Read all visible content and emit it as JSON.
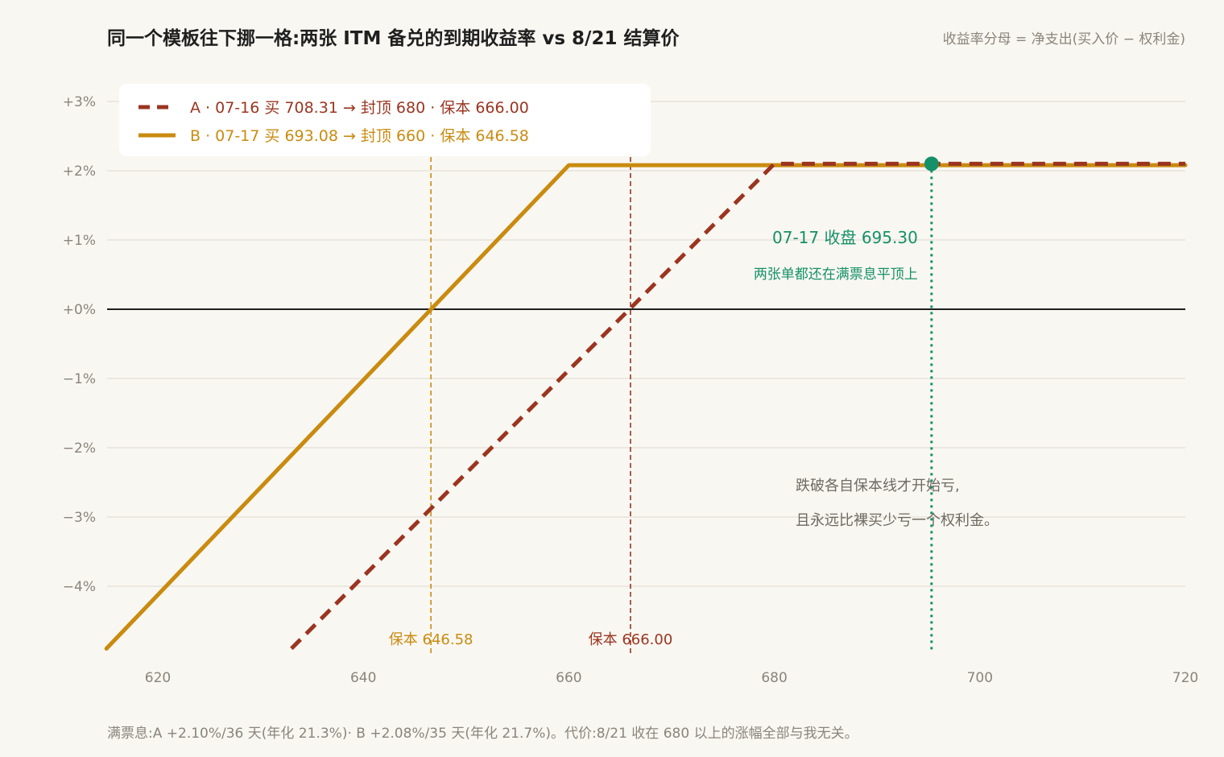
{
  "title": "同一个模板往下挪一格:两张 ITM 备兑的到期收益率 vs 8/21 结算价",
  "note": "收益率分母 = 净支出(买入价 − 权利金)",
  "footer": "满票息:A +2.10%/36 天(年化 21.3%)· B +2.08%/35 天(年化 21.7%)。代价:8/21 收在 680 以上的涨幅全部与我无关。",
  "colors": {
    "series_a": "#9b3520",
    "series_b": "#c98b10",
    "spot": "#159068",
    "zero": "#1f1f1f",
    "grid": "#e8e4da",
    "bg": "#f9f7f2"
  },
  "chart_data": {
    "type": "line",
    "xlabel": "",
    "ylabel": "",
    "xlim": [
      615,
      720
    ],
    "ylim": [
      -4.9,
      3.0
    ],
    "x_ticks": [
      620,
      640,
      660,
      680,
      700,
      720
    ],
    "x_tick_labels": [
      "620",
      "640",
      "660",
      "680",
      "700",
      "720"
    ],
    "y_ticks": [
      3,
      2,
      1,
      0,
      -1,
      -2,
      -3,
      -4
    ],
    "y_tick_labels": [
      "+3%",
      "+2%",
      "+1%",
      "+0%",
      "−1%",
      "−2%",
      "−3%",
      "−4%"
    ],
    "grid": true,
    "legend_position": "top-left",
    "series": [
      {
        "name": "A · 07-16 买 708.31 → 封顶 680 · 保本 666.00",
        "style": "dashed",
        "color": "#9b3520",
        "x": [
          633,
          680,
          720
        ],
        "y": [
          -4.9,
          2.1,
          2.1
        ]
      },
      {
        "name": "B · 07-17 买 693.08 → 封顶 660 · 保本 646.58",
        "style": "solid",
        "color": "#c98b10",
        "x": [
          615,
          660,
          720
        ],
        "y": [
          -4.9,
          2.08,
          2.08
        ]
      }
    ],
    "reference_lines": [
      {
        "x": 646.58,
        "label": "保本 646.58",
        "color": "#c98b10",
        "style": "dashed"
      },
      {
        "x": 666.0,
        "label": "保本 666.00",
        "color": "#9b3520",
        "style": "dashed"
      },
      {
        "x": 695.3,
        "label": "07-17 收盘 695.30",
        "sublabel": "两张单都还在满票息平顶上",
        "color": "#159068",
        "style": "dotted",
        "marker_y": 2.1
      }
    ],
    "annotations": [
      "跌破各自保本线才开始亏,",
      "且永远比裸买少亏一个权利金。"
    ]
  }
}
